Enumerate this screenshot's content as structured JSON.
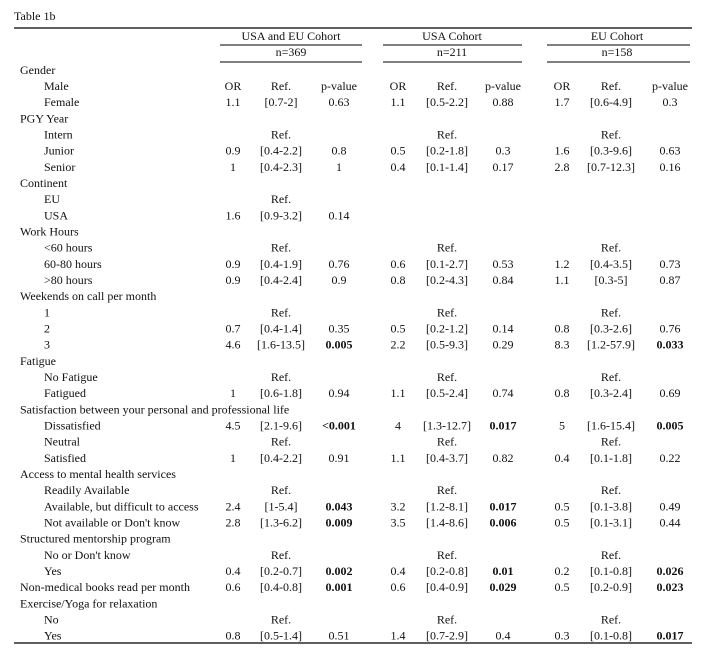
{
  "title": "Table 1b",
  "cohorts": [
    {
      "name": "USA and EU Cohort",
      "n": "n=369"
    },
    {
      "name": "USA Cohort",
      "n": "n=211"
    },
    {
      "name": "EU Cohort",
      "n": "n=158"
    }
  ],
  "columns": [
    "OR",
    "Ref.",
    "p-value"
  ],
  "groups": [
    {
      "label": "Gender",
      "rows": [
        {
          "label": "Male"
        },
        {
          "label": "Female",
          "cells": [
            "1.1",
            "[0.7-2]",
            "0.63",
            "1.1",
            "[0.5-2.2]",
            "0.88",
            "1.7",
            "[0.6-4.9]",
            "0.3"
          ]
        }
      ]
    },
    {
      "label": "PGY Year",
      "rows": [
        {
          "label": "Intern",
          "cells": [
            null,
            "Ref.",
            null,
            null,
            "Ref.",
            null,
            null,
            "Ref.",
            null
          ]
        },
        {
          "label": "Junior",
          "cells": [
            "0.9",
            "[0.4-2.2]",
            "0.8",
            "0.5",
            "[0.2-1.8]",
            "0.3",
            "1.6",
            "[0.3-9.6]",
            "0.63"
          ]
        },
        {
          "label": "Senior",
          "cells": [
            "1",
            "[0.4-2.3]",
            "1",
            "0.4",
            "[0.1-1.4]",
            "0.17",
            "2.8",
            "[0.7-12.3]",
            "0.16"
          ]
        }
      ]
    },
    {
      "label": "Continent",
      "rows": [
        {
          "label": "EU",
          "cells": [
            null,
            "Ref.",
            null,
            null,
            null,
            null,
            null,
            null,
            null
          ]
        },
        {
          "label": "USA",
          "cells": [
            "1.6",
            "[0.9-3.2]",
            "0.14",
            null,
            null,
            null,
            null,
            null,
            null
          ]
        }
      ]
    },
    {
      "label": "Work Hours",
      "rows": [
        {
          "label": "<60 hours",
          "cells": [
            null,
            "Ref.",
            null,
            null,
            "Ref.",
            null,
            null,
            "Ref.",
            null
          ]
        },
        {
          "label": "60-80 hours",
          "cells": [
            "0.9",
            "[0.4-1.9]",
            "0.76",
            "0.6",
            "[0.1-2.7]",
            "0.53",
            "1.2",
            "[0.4-3.5]",
            "0.73"
          ]
        },
        {
          "label": ">80 hours",
          "cells": [
            "0.9",
            "[0.4-2.4]",
            "0.9",
            "0.8",
            "[0.2-4.3]",
            "0.84",
            "1.1",
            "[0.3-5]",
            "0.87"
          ]
        }
      ]
    },
    {
      "label": "Weekends on call per month",
      "rows": [
        {
          "label": "1",
          "cells": [
            null,
            "Ref.",
            null,
            null,
            "Ref.",
            null,
            null,
            "Ref.",
            null
          ]
        },
        {
          "label": "2",
          "cells": [
            "0.7",
            "[0.4-1.4]",
            "0.35",
            "0.5",
            "[0.2-1.2]",
            "0.14",
            "0.8",
            "[0.3-2.6]",
            "0.76"
          ]
        },
        {
          "label": "3",
          "cells": [
            "4.6",
            "[1.6-13.5]",
            {
              "text": "0.005",
              "bold": true
            },
            "2.2",
            "[0.5-9.3]",
            "0.29",
            "8.3",
            "[1.2-57.9]",
            {
              "text": "0.033",
              "bold": true
            }
          ]
        }
      ]
    },
    {
      "label": "Fatigue",
      "rows": [
        {
          "label": "No Fatigue",
          "cells": [
            null,
            "Ref.",
            null,
            null,
            "Ref.",
            null,
            null,
            "Ref.",
            null
          ]
        },
        {
          "label": "Fatigued",
          "cells": [
            "1",
            "[0.6-1.8]",
            "0.94",
            "1.1",
            "[0.5-2.4]",
            "0.74",
            "0.8",
            "[0.3-2.4]",
            "0.69"
          ]
        }
      ]
    },
    {
      "label": "Satisfaction between your personal and professional life",
      "rows": [
        {
          "label": "Dissatisfied",
          "cells": [
            "4.5",
            "[2.1-9.6]",
            {
              "text": "<0.001",
              "bold": true
            },
            "4",
            "[1.3-12.7]",
            {
              "text": "0.017",
              "bold": true
            },
            "5",
            "[1.6-15.4]",
            {
              "text": "0.005",
              "bold": true
            }
          ]
        },
        {
          "label": "Neutral",
          "cells": [
            null,
            "Ref.",
            null,
            null,
            "Ref.",
            null,
            null,
            "Ref.",
            null
          ]
        },
        {
          "label": "Satisfied",
          "cells": [
            "1",
            "[0.4-2.2]",
            "0.91",
            "1.1",
            "[0.4-3.7]",
            "0.82",
            "0.4",
            "[0.1-1.8]",
            "0.22"
          ]
        }
      ]
    },
    {
      "label": "Access to mental health services",
      "rows": [
        {
          "label": "Readily Available",
          "cells": [
            null,
            "Ref.",
            null,
            null,
            "Ref.",
            null,
            null,
            "Ref.",
            null
          ]
        },
        {
          "label": "Available, but difficult to access",
          "cells": [
            "2.4",
            "[1-5.4]",
            {
              "text": "0.043",
              "bold": true
            },
            "3.2",
            "[1.2-8.1]",
            {
              "text": "0.017",
              "bold": true
            },
            "0.5",
            "[0.1-3.8]",
            "0.49"
          ]
        },
        {
          "label": "Not available or Don't know",
          "cells": [
            "2.8",
            "[1.3-6.2]",
            {
              "text": "0.009",
              "bold": true
            },
            "3.5",
            "[1.4-8.6]",
            {
              "text": "0.006",
              "bold": true
            },
            "0.5",
            "[0.1-3.1]",
            "0.44"
          ]
        }
      ]
    },
    {
      "label": "Structured mentorship program",
      "rows": [
        {
          "label": "No or Don't know",
          "cells": [
            null,
            "Ref.",
            null,
            null,
            "Ref.",
            null,
            null,
            "Ref.",
            null
          ]
        },
        {
          "label": "Yes",
          "cells": [
            "0.4",
            "[0.2-0.7]",
            {
              "text": "0.002",
              "bold": true
            },
            "0.4",
            "[0.2-0.8]",
            {
              "text": "0.01",
              "bold": true
            },
            "0.2",
            "[0.1-0.8]",
            {
              "text": "0.026",
              "bold": true
            }
          ]
        }
      ]
    },
    {
      "label": "Non-medical books read per month",
      "cells": [
        "0.6",
        "[0.4-0.8]",
        {
          "text": "0.001",
          "bold": true
        },
        "0.6",
        "[0.4-0.9]",
        {
          "text": "0.029",
          "bold": true
        },
        "0.5",
        "[0.2-0.9]",
        {
          "text": "0.023",
          "bold": true
        }
      ],
      "rows": []
    },
    {
      "label": "Exercise/Yoga for relaxation",
      "rows": [
        {
          "label": "No",
          "cells": [
            null,
            "Ref.",
            null,
            null,
            "Ref.",
            null,
            null,
            "Ref.",
            null
          ]
        },
        {
          "label": "Yes",
          "cells": [
            "0.8",
            "[0.5-1.4]",
            "0.51",
            "1.4",
            "[0.7-2.9]",
            "0.4",
            "0.3",
            "[0.1-0.8]",
            {
              "text": "0.017",
              "bold": true
            }
          ]
        }
      ]
    }
  ]
}
